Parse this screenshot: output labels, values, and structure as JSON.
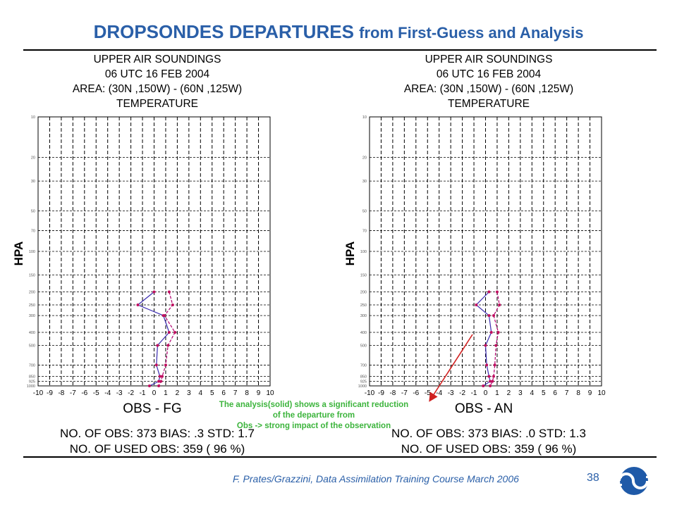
{
  "slide": {
    "title_main": "DROPSONDES DEPARTURES",
    "title_rest": "from First-Guess and Analysis",
    "footer": "F. Prates/Grazzini,  Data Assimilation Training Course March 2006",
    "page_number": "38",
    "logo_icon": "ecmwf-logo-icon",
    "colors": {
      "title": "#2a5fa8",
      "note": "#3cb43c",
      "dashed_series": "#b0006e",
      "solid_series": "#3a2bb0",
      "arrow": "#d02020"
    }
  },
  "annotation": {
    "lines": [
      "The analysis(solid) shows a significant reduction",
      "of the departure from",
      "Obs -> strong impact of the observation"
    ]
  },
  "chart_data": [
    {
      "type": "line",
      "header": [
        "UPPER AIR SOUNDINGS",
        "06 UTC 16 FEB 2004",
        "AREA: (30N ,150W) - (60N ,125W)",
        "TEMPERATURE"
      ],
      "xlabel": "OBS - FG",
      "ylabel": "HPA",
      "xlim": [
        -10,
        10
      ],
      "x_ticks": [
        -10,
        -9,
        -8,
        -7,
        -6,
        -5,
        -4,
        -3,
        -2,
        -1,
        0,
        1,
        2,
        3,
        4,
        5,
        6,
        7,
        8,
        9,
        10
      ],
      "y_scale": "log",
      "y_inverted": true,
      "y_ticks": [
        10,
        20,
        30,
        50,
        70,
        100,
        150,
        200,
        250,
        300,
        400,
        500,
        700,
        850,
        925,
        1000
      ],
      "grid": true,
      "series": [
        {
          "style": "dashed",
          "points": [
            [
              1.3,
              200
            ],
            [
              1.6,
              250
            ],
            [
              0.9,
              300
            ],
            [
              1.8,
              400
            ],
            [
              1.2,
              500
            ],
            [
              1.0,
              700
            ],
            [
              0.7,
              850
            ],
            [
              0.6,
              925
            ],
            [
              0.4,
              1000
            ]
          ]
        },
        {
          "style": "solid",
          "points": [
            [
              0.0,
              200
            ],
            [
              -1.4,
              250
            ],
            [
              0.8,
              300
            ],
            [
              1.3,
              400
            ],
            [
              0.3,
              500
            ],
            [
              0.2,
              700
            ],
            [
              0.5,
              850
            ],
            [
              0.4,
              925
            ],
            [
              -0.4,
              1000
            ]
          ]
        }
      ],
      "stats": [
        "NO. OF OBS: 373 BIAS: .3 STD: 1.7",
        "NO. OF USED OBS:     359 ( 96 %)"
      ]
    },
    {
      "type": "line",
      "header": [
        "UPPER AIR SOUNDINGS",
        "06 UTC 16 FEB 2004",
        "AREA: (30N ,150W) - (60N ,125W)",
        "TEMPERATURE"
      ],
      "xlabel": "OBS - AN",
      "ylabel": "HPA",
      "xlim": [
        -10,
        10
      ],
      "x_ticks": [
        -10,
        -9,
        -8,
        -7,
        -6,
        -5,
        -4,
        -3,
        -2,
        -1,
        0,
        1,
        2,
        3,
        4,
        5,
        6,
        7,
        8,
        9,
        10
      ],
      "y_scale": "log",
      "y_inverted": true,
      "y_ticks": [
        10,
        20,
        30,
        50,
        70,
        100,
        150,
        200,
        250,
        300,
        400,
        500,
        700,
        850,
        925,
        1000
      ],
      "grid": true,
      "series": [
        {
          "style": "dashed",
          "points": [
            [
              1.0,
              200
            ],
            [
              1.2,
              250
            ],
            [
              0.7,
              300
            ],
            [
              1.1,
              400
            ],
            [
              0.9,
              500
            ],
            [
              0.8,
              700
            ],
            [
              0.7,
              850
            ],
            [
              0.6,
              925
            ],
            [
              0.4,
              1000
            ]
          ]
        },
        {
          "style": "solid",
          "points": [
            [
              0.3,
              200
            ],
            [
              -0.8,
              250
            ],
            [
              0.3,
              300
            ],
            [
              0.5,
              400
            ],
            [
              0.0,
              500
            ],
            [
              0.1,
              700
            ],
            [
              0.3,
              850
            ],
            [
              0.4,
              925
            ],
            [
              -0.2,
              1000
            ]
          ]
        }
      ],
      "stats": [
        "NO. OF OBS: 373 BIAS: .0 STD: 1.3",
        "NO. OF USED OBS:     359 ( 96 %)"
      ]
    }
  ]
}
